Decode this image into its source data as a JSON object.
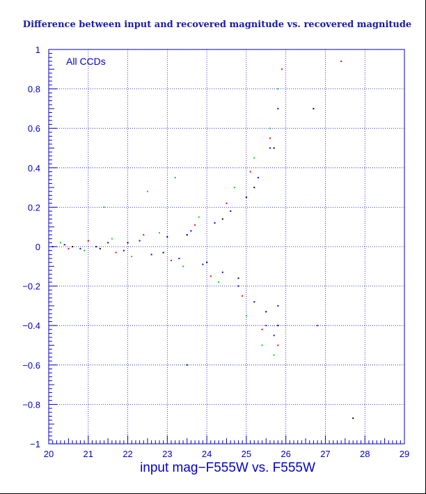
{
  "chart_data": {
    "type": "scatter",
    "title": "Difference between input and recovered magnitude vs. recovered magnitude",
    "xlabel": "input mag−F555W vs. F555W",
    "ylabel": "",
    "annotation": "All CCDs",
    "xlim": [
      20,
      29
    ],
    "ylim": [
      -1,
      1
    ],
    "x_ticks": [
      "20",
      "21",
      "22",
      "23",
      "24",
      "25",
      "26",
      "27",
      "28",
      "29"
    ],
    "y_ticks": [
      "1",
      "0.8",
      "0.6",
      "0.4",
      "0.2",
      "0",
      "−0.2",
      "−0.4",
      "−0.6",
      "−0.8",
      "−1"
    ],
    "grid": true,
    "colors": {
      "axis": "#0000cc",
      "grid": "#0000cc",
      "title": "#1a1aa8"
    },
    "series": [
      {
        "color": "#0000ff",
        "points": [
          [
            20.1,
            0.0
          ],
          [
            20.4,
            0.01
          ],
          [
            20.8,
            -0.01
          ],
          [
            21.2,
            0.0
          ],
          [
            21.5,
            0.02
          ],
          [
            21.9,
            -0.02
          ],
          [
            22.3,
            0.03
          ],
          [
            22.6,
            -0.04
          ],
          [
            23.0,
            0.05
          ],
          [
            23.3,
            -0.06
          ],
          [
            23.6,
            0.08
          ],
          [
            23.9,
            -0.09
          ],
          [
            24.2,
            0.12
          ],
          [
            24.4,
            -0.13
          ],
          [
            24.6,
            0.18
          ],
          [
            24.8,
            -0.2
          ],
          [
            25.0,
            0.25
          ],
          [
            25.2,
            -0.28
          ],
          [
            25.3,
            0.35
          ],
          [
            25.5,
            -0.4
          ],
          [
            25.6,
            0.5
          ],
          [
            25.7,
            -0.45
          ],
          [
            25.8,
            0.7
          ],
          [
            25.8,
            -0.3
          ]
        ]
      },
      {
        "color": "#00dd00",
        "points": [
          [
            20.3,
            0.02
          ],
          [
            20.9,
            -0.02
          ],
          [
            21.6,
            0.04
          ],
          [
            22.1,
            -0.05
          ],
          [
            22.8,
            0.07
          ],
          [
            23.4,
            -0.1
          ],
          [
            23.8,
            0.15
          ],
          [
            24.3,
            -0.18
          ],
          [
            24.7,
            0.3
          ],
          [
            25.0,
            -0.35
          ],
          [
            25.2,
            0.45
          ],
          [
            25.4,
            -0.5
          ],
          [
            25.6,
            0.6
          ],
          [
            25.7,
            -0.55
          ],
          [
            25.8,
            0.8
          ],
          [
            21.4,
            0.2
          ],
          [
            22.5,
            0.28
          ],
          [
            23.2,
            0.35
          ]
        ]
      },
      {
        "color": "#ff0000",
        "points": [
          [
            20.5,
            -0.01
          ],
          [
            21.0,
            0.03
          ],
          [
            21.7,
            -0.03
          ],
          [
            22.4,
            0.06
          ],
          [
            23.1,
            -0.07
          ],
          [
            23.7,
            0.11
          ],
          [
            24.1,
            -0.15
          ],
          [
            24.5,
            0.22
          ],
          [
            24.9,
            -0.25
          ],
          [
            25.1,
            0.38
          ],
          [
            25.4,
            -0.42
          ],
          [
            25.6,
            0.55
          ],
          [
            25.8,
            -0.5
          ],
          [
            25.9,
            0.9
          ],
          [
            27.4,
            0.94
          ],
          [
            26.8,
            -0.4
          ]
        ]
      },
      {
        "color": "#000000",
        "points": [
          [
            20.6,
            0.0
          ],
          [
            21.3,
            -0.01
          ],
          [
            22.0,
            0.02
          ],
          [
            22.9,
            -0.03
          ],
          [
            23.5,
            0.06
          ],
          [
            24.0,
            -0.08
          ],
          [
            24.4,
            0.14
          ],
          [
            24.8,
            -0.16
          ],
          [
            25.2,
            0.3
          ],
          [
            25.5,
            -0.33
          ],
          [
            25.7,
            0.5
          ],
          [
            25.8,
            -0.4
          ],
          [
            26.7,
            0.7
          ],
          [
            27.7,
            -0.87
          ],
          [
            23.5,
            -0.6
          ]
        ]
      }
    ]
  }
}
